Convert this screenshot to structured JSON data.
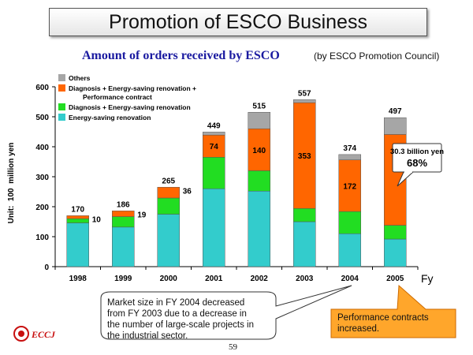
{
  "slide": {
    "title": "Promotion of ESCO Business",
    "page_number": "59",
    "logo_text": "ECCJ"
  },
  "chart_data": {
    "type": "bar",
    "stacked": true,
    "title": "Amount of orders received by ESCO",
    "source_note": "(by ESCO Promotion Council)",
    "ylabel": "Unit:  100  million yen",
    "xlabel": "Fy",
    "ylim": [
      0,
      600
    ],
    "yticks": [
      0,
      100,
      200,
      300,
      400,
      500,
      600
    ],
    "grid": false,
    "legend_position": "top-left",
    "categories": [
      "1998",
      "1999",
      "2000",
      "2001",
      "2002",
      "2003",
      "2004",
      "2005"
    ],
    "series": [
      {
        "name": "Energy-saving renovation",
        "color": "#33cccc",
        "values": [
          146,
          132,
          175,
          260,
          252,
          150,
          110,
          92
        ]
      },
      {
        "name": "Diagnosis + Energy-saving renovation",
        "color": "#22dd22",
        "values": [
          14,
          35,
          54,
          105,
          68,
          44,
          74,
          46
        ]
      },
      {
        "name": "Diagnosis + Energy-saving renovation + Performance contract",
        "color": "#ff6600",
        "values": [
          10,
          19,
          36,
          74,
          140,
          353,
          172,
          303
        ]
      },
      {
        "name": "Others",
        "color": "#a6a6a6",
        "values": [
          0,
          0,
          0,
          10,
          55,
          10,
          18,
          56
        ]
      }
    ],
    "totals": [
      "170",
      "186",
      "265",
      "449",
      "515",
      "557",
      "374",
      "497"
    ],
    "performance_labels": [
      "10",
      "19",
      "36",
      "74",
      "140",
      "353",
      "172",
      ""
    ],
    "annotation_2005": {
      "line1": "30.3 billion yen",
      "line2": "68%"
    }
  },
  "callouts": {
    "market_note": [
      "Market size in FY 2004 decreased",
      "from FY 2003 due to a decrease in",
      "the number of large-scale projects in",
      "the industrial sector."
    ],
    "performance_note": [
      "Performance contracts",
      "increased."
    ]
  }
}
